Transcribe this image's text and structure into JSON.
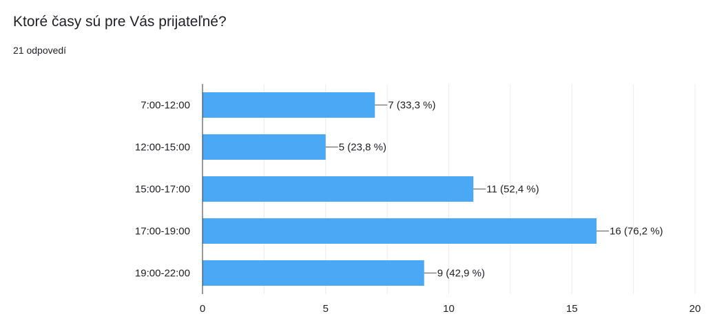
{
  "question": {
    "title": "Ktoré časy sú pre Vás prijateľné?",
    "response_count": "21 odpovedí"
  },
  "colors": {
    "bar": "#4AA8F5",
    "grid": "#ececec",
    "axis": "#333333",
    "text": "#202124"
  },
  "chart_data": {
    "type": "bar",
    "orientation": "horizontal",
    "categories": [
      "7:00-12:00",
      "12:00-15:00",
      "15:00-17:00",
      "17:00-19:00",
      "19:00-22:00"
    ],
    "values": [
      7,
      5,
      11,
      16,
      9
    ],
    "data_labels": [
      "7 (33,3 %)",
      "5 (23,8 %)",
      "11 (52,4 %)",
      "16 (76,2 %)",
      "9 (42,9 %)"
    ],
    "xlim": [
      0,
      20
    ],
    "x_ticks": [
      0,
      5,
      10,
      15,
      20
    ],
    "grid": true,
    "title": "",
    "xlabel": "",
    "ylabel": ""
  }
}
